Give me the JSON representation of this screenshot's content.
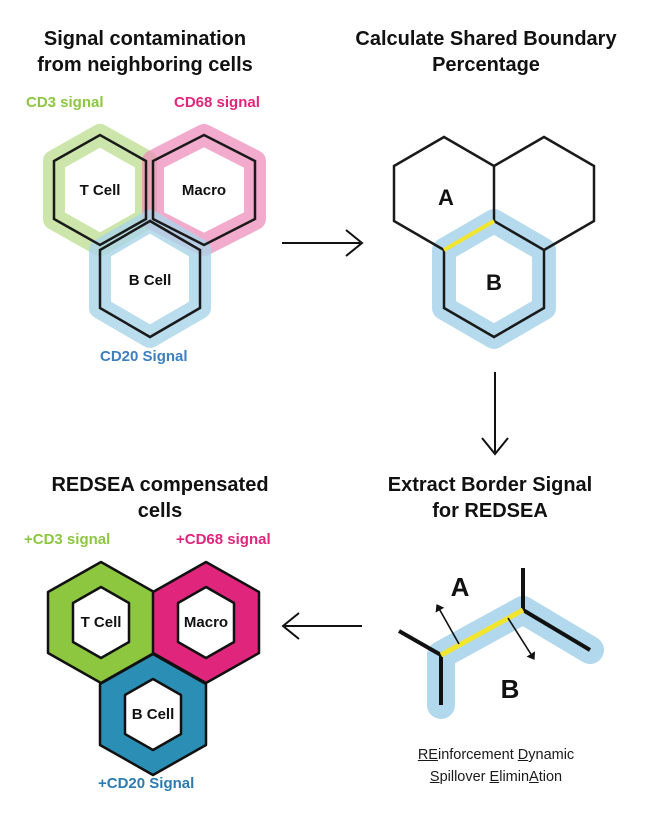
{
  "panel_tl": {
    "title_line1": "Signal contamination",
    "title_line2": "from neighboring cells",
    "cd3_label": "CD3 signal",
    "cd68_label": "CD68 signal",
    "cd20_label": "CD20 Signal",
    "tcell": "T Cell",
    "macro": "Macro",
    "bcell": "B Cell"
  },
  "panel_tr": {
    "title_line1": "Calculate Shared Boundary",
    "title_line2": "Percentage",
    "cell_a": "A",
    "cell_b": "B"
  },
  "panel_br": {
    "title_line1": "Extract Border Signal",
    "title_line2": "for REDSEA",
    "label_a": "A",
    "label_b": "B",
    "acronym_line1": {
      "p1": "RE",
      "p2": "inforcement ",
      "p3": "D",
      "p4": "ynamic"
    },
    "acronym_line2": {
      "p1": "S",
      "p2": "pillover ",
      "p3": "E",
      "p4": "limin",
      "p5": "A",
      "p6": "tion"
    }
  },
  "panel_bl": {
    "title_line1": "REDSEA compensated",
    "title_line2": "cells",
    "cd3_label": "+CD3 signal",
    "cd68_label": "+CD68 signal",
    "cd20_label": "+CD20 Signal",
    "tcell": "T Cell",
    "macro": "Macro",
    "bcell": "B Cell"
  },
  "colors": {
    "cd3": "#8dc63f",
    "cd68": "#e0267c",
    "cd20": "#4a90c8",
    "cd20_dark": "#2b8fb5",
    "glow_blue": "#a9d4ea",
    "glow_green": "#b9dc8e",
    "glow_pink": "#ee8fbb",
    "border_yellow": "#f2e530"
  }
}
